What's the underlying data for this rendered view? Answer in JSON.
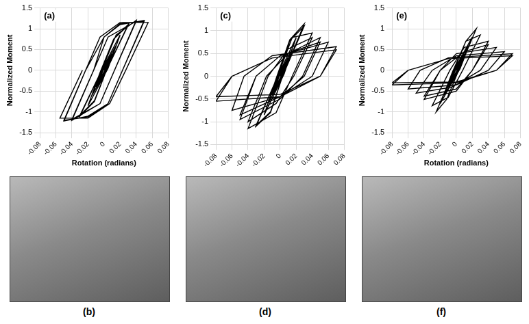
{
  "chart_data": [
    {
      "type": "line",
      "title": "(a)",
      "y_label": "Normalized Moment",
      "x_label": "Rotation (radians)",
      "color": "#000000",
      "grid": true,
      "xlim": [
        -0.08,
        0.08
      ],
      "xticks": [
        -0.08,
        -0.06,
        -0.04,
        -0.02,
        0,
        0.02,
        0.04,
        0.06,
        0.08
      ],
      "ylim": [
        -1.5,
        1.5
      ],
      "yticks": [
        -1.5,
        -1,
        -0.5,
        0,
        0.5,
        1,
        1.5
      ],
      "x": [
        0,
        0.0075,
        0.001,
        -0.0075,
        -0.001,
        0.01,
        0.002,
        -0.01,
        -0.002,
        0.015,
        0.003,
        -0.015,
        -0.003,
        0.02,
        0.005,
        -0.02,
        -0.005,
        0.012,
        0.03,
        0.003,
        -0.012,
        -0.03,
        -0.003,
        0.012,
        0.03,
        0.003,
        -0.012,
        -0.03,
        -0.003,
        0.015,
        0.04,
        0.013,
        -0.005,
        -0.04,
        -0.013,
        0.005,
        0.04,
        0.013,
        -0.005,
        -0.04,
        -0.013,
        0,
        0.02,
        0.05,
        0.023,
        0.005,
        -0.02,
        -0.05,
        -0.023,
        0,
        0.02,
        0.05,
        0.023,
        0.005,
        -0.02,
        -0.05,
        -0.023,
        -0.005,
        0.02,
        0.055,
        0.027,
        0.007,
        -0.02,
        -0.055,
        -0.027
      ],
      "values": [
        0,
        0.3,
        0,
        -0.3,
        0,
        0.4,
        0,
        -0.4,
        0,
        0.6,
        0,
        -0.6,
        0,
        0.85,
        0.05,
        -0.85,
        -0.05,
        0.75,
        1.1,
        0,
        -0.75,
        -1.1,
        0,
        0.75,
        1.08,
        0,
        -0.73,
        -1.08,
        0,
        0.85,
        1.2,
        0,
        -0.8,
        -1.2,
        0,
        0.8,
        1.18,
        0,
        -0.8,
        -1.18,
        0,
        0.8,
        1.1,
        1.2,
        0,
        -0.8,
        -1.1,
        -1.22,
        0,
        0.8,
        1.12,
        1.18,
        0,
        -0.8,
        -1.12,
        -1.2,
        0,
        0.8,
        1.15,
        1.15,
        0,
        -0.8,
        -1.15,
        -1.15,
        0
      ]
    },
    {
      "type": "line",
      "title": "(c)",
      "y_label": "Normalized Moment",
      "color": "#000000",
      "grid": true,
      "xlim": [
        -0.08,
        0.08
      ],
      "xticks": [
        -0.08,
        -0.06,
        -0.04,
        -0.02,
        0,
        0.02,
        0.04,
        0.06,
        0.08
      ],
      "ylim": [
        -1.5,
        1.5
      ],
      "yticks": [
        -1.5,
        -1,
        -0.5,
        0,
        0.5,
        1,
        1.5
      ],
      "x": [
        0,
        0.0075,
        0.001,
        -0.0075,
        -0.001,
        0.01,
        0.002,
        -0.01,
        -0.002,
        0.015,
        0.003,
        -0.015,
        -0.003,
        0.02,
        0.005,
        -0.02,
        -0.005,
        0.012,
        0.03,
        0.003,
        -0.012,
        -0.03,
        -0.003,
        0.012,
        0.03,
        0.003,
        -0.012,
        -0.03,
        -0.003,
        0.015,
        0.04,
        0.015,
        -0.005,
        -0.04,
        -0.015,
        0.01,
        0.04,
        0.017,
        -0.005,
        -0.04,
        -0.017,
        0.01,
        0.05,
        0.028,
        0,
        -0.05,
        -0.03,
        0,
        0.05,
        0.03,
        0,
        -0.05,
        -0.03,
        0,
        0.06,
        0.04,
        0,
        -0.06,
        -0.045,
        -0.01,
        0.07,
        0.05,
        0,
        -0.08,
        -0.06,
        -0.01,
        0.07,
        0.05,
        0,
        -0.08,
        -0.06
      ],
      "values": [
        0,
        0.3,
        0,
        -0.3,
        0,
        0.4,
        0,
        -0.4,
        0,
        0.6,
        0,
        -0.6,
        0,
        0.85,
        0.05,
        -0.85,
        -0.05,
        0.8,
        1.15,
        0,
        -0.8,
        -1.1,
        0,
        0.78,
        1.1,
        0,
        -0.78,
        -1.08,
        0,
        0.85,
        0.95,
        0,
        -0.8,
        -1.15,
        0,
        0.6,
        0.85,
        0,
        -0.6,
        -1.0,
        0,
        0.5,
        0.85,
        0,
        -0.5,
        -0.95,
        0,
        0.45,
        0.75,
        0,
        -0.45,
        -0.85,
        0,
        0.45,
        0.75,
        0,
        -0.45,
        -0.75,
        0,
        0.45,
        0.65,
        0,
        -0.45,
        -0.55,
        0,
        0.4,
        0.58,
        0,
        -0.4,
        -0.45,
        0
      ]
    },
    {
      "type": "line",
      "title": "(e)",
      "y_label": "Normalized Moment",
      "x_label": "Rotation (radians)",
      "color": "#000000",
      "grid": true,
      "xlim": [
        -0.08,
        0.08
      ],
      "xticks": [
        -0.08,
        -0.06,
        -0.04,
        -0.02,
        0,
        0.02,
        0.04,
        0.06,
        0.08
      ],
      "ylim": [
        -1.5,
        1.5
      ],
      "yticks": [
        -1.5,
        -1,
        -0.5,
        0,
        0.5,
        1,
        1.5
      ],
      "x": [
        0,
        0.0075,
        0.001,
        -0.0075,
        -0.001,
        0.01,
        0.002,
        -0.01,
        -0.002,
        0.015,
        0.003,
        -0.015,
        -0.003,
        0.02,
        0.005,
        -0.02,
        -0.005,
        0.012,
        0.025,
        0.003,
        -0.012,
        -0.025,
        -0.003,
        0.012,
        0.03,
        0.008,
        -0.01,
        -0.03,
        -0.008,
        0.01,
        0.04,
        0.02,
        0,
        -0.04,
        -0.02,
        0.01,
        0.04,
        0.02,
        0,
        -0.04,
        -0.02,
        0,
        0.05,
        0.03,
        -0.005,
        -0.05,
        -0.03,
        0,
        0.06,
        0.04,
        0,
        -0.06,
        -0.045,
        -0.01,
        0.07,
        0.05,
        0,
        -0.08,
        -0.06,
        -0.01,
        0.07,
        0.05,
        0,
        -0.08,
        -0.06
      ],
      "values": [
        0,
        0.3,
        0,
        -0.3,
        0,
        0.4,
        0,
        -0.4,
        0,
        0.6,
        0,
        -0.6,
        0,
        0.8,
        0.05,
        -0.8,
        -0.05,
        0.7,
        1.0,
        0,
        -0.7,
        -1.0,
        0,
        0.7,
        0.85,
        0,
        -0.65,
        -0.85,
        0,
        0.55,
        0.7,
        0,
        -0.5,
        -0.7,
        0,
        0.45,
        0.62,
        0,
        -0.45,
        -0.62,
        0,
        0.4,
        0.55,
        0,
        -0.4,
        -0.55,
        0,
        0.35,
        0.45,
        0,
        -0.35,
        -0.45,
        0,
        0.3,
        0.4,
        0,
        -0.3,
        -0.35,
        0,
        0.28,
        0.35,
        0,
        -0.28,
        -0.3,
        0
      ]
    }
  ],
  "photos": [
    {
      "label": "(b)"
    },
    {
      "label": "(d)"
    },
    {
      "label": "(f)"
    }
  ]
}
